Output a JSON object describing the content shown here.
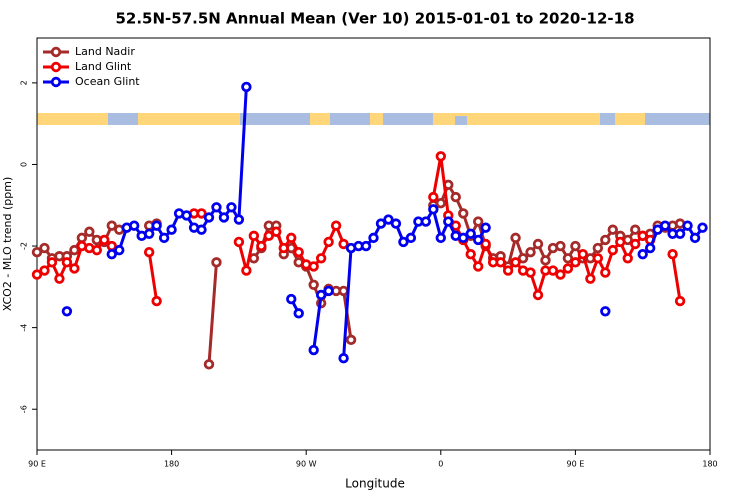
{
  "chart_data": {
    "type": "line",
    "title": "52.5N-57.5N Annual Mean (Ver 10)   2015-01-01 to 2020-12-18",
    "x_label": "Longitude",
    "y_label": "XCO2 - MLO trend (ppm)",
    "x": [
      90,
      95,
      100,
      105,
      110,
      115,
      120,
      125,
      130,
      135,
      140,
      145,
      150,
      155,
      160,
      165,
      170,
      175,
      180,
      185,
      190,
      195,
      200,
      205,
      210,
      215,
      220,
      225,
      230,
      235,
      240,
      245,
      250,
      255,
      260,
      265,
      270,
      275,
      280,
      285,
      290,
      295,
      300,
      305,
      310,
      315,
      320,
      325,
      330,
      335,
      340,
      345,
      350,
      355,
      360,
      365,
      370,
      375,
      380,
      385,
      390,
      395,
      400,
      405,
      410,
      415,
      420,
      425,
      430,
      435,
      440,
      445,
      450,
      455,
      460,
      465,
      470,
      475,
      480,
      485,
      490,
      495,
      500,
      505,
      510,
      515,
      520,
      525,
      530,
      535,
      540
    ],
    "series": [
      {
        "name": "Land Nadir",
        "color": "#a52a2a",
        "values": [
          -2.15,
          -2.05,
          -2.3,
          -2.25,
          -2.25,
          -2.1,
          -1.8,
          -1.65,
          -1.85,
          -1.9,
          -1.5,
          -1.6,
          null,
          null,
          null,
          -1.5,
          -1.45,
          null,
          null,
          null,
          null,
          null,
          null,
          -4.9,
          -2.4,
          null,
          null,
          null,
          null,
          -2.3,
          -2.05,
          -1.5,
          -1.5,
          -2.2,
          -2.05,
          -2.4,
          -2.5,
          -2.95,
          -3.4,
          -3.05,
          -3.1,
          -3.1,
          -4.3,
          null,
          null,
          null,
          null,
          null,
          null,
          null,
          null,
          null,
          null,
          -1.0,
          -0.95,
          -0.5,
          -0.8,
          -1.2,
          -1.75,
          -1.4,
          -2.0,
          -2.3,
          -2.25,
          -2.5,
          -1.8,
          -2.3,
          -2.15,
          -1.95,
          -2.35,
          -2.05,
          -2.0,
          -2.3,
          -2.0,
          -2.3,
          -2.3,
          -2.05,
          -1.85,
          -1.6,
          -1.75,
          -1.85,
          -1.6,
          -1.75,
          -1.7,
          -1.5,
          -1.55,
          -1.5,
          -1.45,
          null,
          null,
          null,
          null
        ]
      },
      {
        "name": "Land Glint",
        "color": "#ee0000",
        "values": [
          -2.7,
          -2.6,
          -2.4,
          -2.8,
          -2.4,
          -2.55,
          -2.0,
          -2.05,
          -2.1,
          -1.85,
          -2.0,
          null,
          null,
          null,
          null,
          -2.15,
          -3.35,
          null,
          null,
          null,
          null,
          -1.2,
          -1.2,
          null,
          null,
          null,
          null,
          -1.9,
          -2.6,
          -1.75,
          -2.0,
          -1.75,
          -1.65,
          -2.05,
          -1.8,
          -2.15,
          -2.45,
          -2.5,
          -2.3,
          -1.9,
          -1.5,
          -1.95,
          null,
          null,
          null,
          null,
          null,
          null,
          null,
          null,
          null,
          null,
          null,
          -0.8,
          0.2,
          -1.25,
          -1.5,
          -1.85,
          -2.2,
          -2.5,
          -1.95,
          -2.4,
          -2.4,
          -2.6,
          -2.4,
          -2.6,
          -2.65,
          -3.2,
          -2.6,
          -2.6,
          -2.7,
          -2.55,
          -2.4,
          -2.2,
          -2.8,
          -2.3,
          -2.65,
          -2.1,
          -1.9,
          -2.3,
          -1.95,
          -1.75,
          -1.85,
          null,
          null,
          -2.2,
          -3.35,
          null,
          null,
          null,
          null
        ]
      },
      {
        "name": "Ocean Glint",
        "color": "#0000ee",
        "values": [
          null,
          null,
          null,
          null,
          -3.6,
          null,
          null,
          null,
          null,
          null,
          -2.2,
          -2.1,
          -1.55,
          -1.5,
          -1.75,
          -1.7,
          -1.5,
          -1.8,
          -1.6,
          -1.2,
          -1.25,
          -1.55,
          -1.6,
          -1.3,
          -1.05,
          -1.3,
          -1.05,
          -1.35,
          1.9,
          null,
          null,
          null,
          null,
          null,
          -3.3,
          -3.65,
          null,
          -4.55,
          -3.2,
          -3.1,
          null,
          -4.75,
          -2.05,
          -2.0,
          -2.0,
          -1.8,
          -1.45,
          -1.35,
          -1.45,
          -1.9,
          -1.8,
          -1.4,
          -1.4,
          -1.1,
          -1.8,
          -1.4,
          -1.75,
          -1.8,
          -1.7,
          -1.85,
          -1.55,
          null,
          null,
          null,
          null,
          null,
          null,
          null,
          null,
          null,
          null,
          null,
          null,
          null,
          null,
          null,
          -3.6,
          null,
          null,
          null,
          null,
          -2.2,
          -2.05,
          -1.6,
          -1.5,
          -1.7,
          -1.7,
          -1.5,
          -1.8,
          -1.55,
          null
        ]
      }
    ],
    "xlim": [
      90,
      540
    ],
    "ylim": [
      -7,
      3.1
    ],
    "xticks": [
      {
        "value": 90,
        "label": "90 E"
      },
      180,
      {
        "value": 270,
        "label": "90 W"
      },
      {
        "value": 360,
        "label": "0"
      },
      {
        "value": 450,
        "label": "90 E"
      },
      {
        "value": 540,
        "label": "180"
      }
    ],
    "yticks": [
      -6,
      -4,
      -2,
      0,
      2
    ],
    "legend": "top-left"
  }
}
